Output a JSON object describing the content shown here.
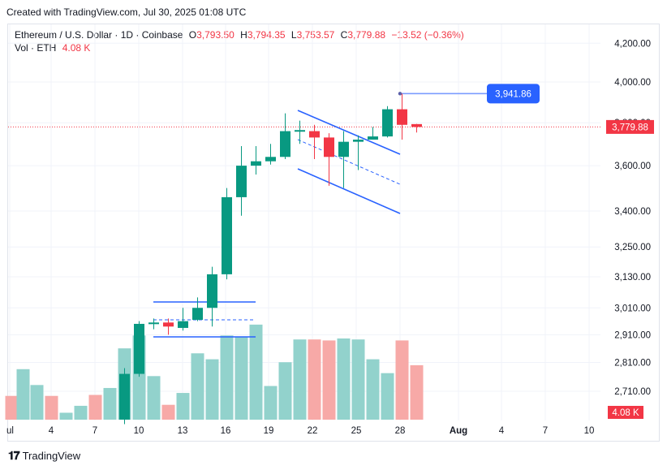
{
  "header": {
    "created_note": "Created with TradingView.com, Jul 30, 2025 01:08 UTC"
  },
  "legend": {
    "symbol": "Ethereum / U.S. Dollar · 1D · Coinbase",
    "o_label": "O",
    "o_value": "3,793.50",
    "h_label": "H",
    "h_value": "3,794.35",
    "l_label": "L",
    "l_value": "3,753.57",
    "c_label": "C",
    "c_value": "3,779.88",
    "change": "−13.52 (−0.36%)",
    "vol_label": "Vol · ETH",
    "vol_value": "4.08 K"
  },
  "price_axis": {
    "ticks": [
      "4,200.00",
      "4,000.00",
      "3,800.00",
      "3,600.00",
      "3,400.00",
      "3,250.00",
      "3,130.00",
      "3,010.00",
      "2,910.00",
      "2,810.00",
      "2,710.00"
    ],
    "last_price_tag": "3,779.88",
    "volume_tag": "4.08 K",
    "callout": "3,941.86"
  },
  "time_axis": {
    "ticks": [
      "ul",
      "4",
      "7",
      "10",
      "13",
      "16",
      "19",
      "22",
      "25",
      "28",
      "Aug",
      "4",
      "7",
      "10"
    ]
  },
  "colors": {
    "up": "#089981",
    "down": "#f23645",
    "up_vol": "#92d2cc",
    "down_vol": "#f7a9a7",
    "drawing": "#2962ff",
    "callout_bg": "#2962ff"
  },
  "chart_data": {
    "type": "candlestick",
    "title": "Ethereum / U.S. Dollar · 1D · Coinbase",
    "x": [
      "Jul 9",
      "Jul 10",
      "Jul 11",
      "Jul 12",
      "Jul 13",
      "Jul 14",
      "Jul 15",
      "Jul 16",
      "Jul 17",
      "Jul 18",
      "Jul 19",
      "Jul 20",
      "Jul 21",
      "Jul 22",
      "Jul 23",
      "Jul 24",
      "Jul 25",
      "Jul 26",
      "Jul 27",
      "Jul 28",
      "Jul 29"
    ],
    "candles": [
      {
        "o": 2615,
        "h": 2790,
        "l": 2600,
        "c": 2770
      },
      {
        "o": 2770,
        "h": 2960,
        "l": 2760,
        "c": 2950
      },
      {
        "o": 2950,
        "h": 2970,
        "l": 2930,
        "c": 2955
      },
      {
        "o": 2955,
        "h": 2970,
        "l": 2910,
        "c": 2940
      },
      {
        "o": 2935,
        "h": 3010,
        "l": 2925,
        "c": 2960
      },
      {
        "o": 2965,
        "h": 3050,
        "l": 2960,
        "c": 3010
      },
      {
        "o": 3010,
        "h": 3170,
        "l": 2940,
        "c": 3140
      },
      {
        "o": 3140,
        "h": 3500,
        "l": 3120,
        "c": 3460
      },
      {
        "o": 3460,
        "h": 3690,
        "l": 3380,
        "c": 3600
      },
      {
        "o": 3600,
        "h": 3690,
        "l": 3560,
        "c": 3620
      },
      {
        "o": 3620,
        "h": 3700,
        "l": 3605,
        "c": 3640
      },
      {
        "o": 3640,
        "h": 3845,
        "l": 3630,
        "c": 3760
      },
      {
        "o": 3760,
        "h": 3810,
        "l": 3700,
        "c": 3765
      },
      {
        "o": 3760,
        "h": 3790,
        "l": 3630,
        "c": 3730
      },
      {
        "o": 3730,
        "h": 3750,
        "l": 3510,
        "c": 3640
      },
      {
        "o": 3640,
        "h": 3760,
        "l": 3500,
        "c": 3710
      },
      {
        "o": 3710,
        "h": 3740,
        "l": 3580,
        "c": 3720
      },
      {
        "o": 3720,
        "h": 3780,
        "l": 3720,
        "c": 3735
      },
      {
        "o": 3735,
        "h": 3880,
        "l": 3730,
        "c": 3865
      },
      {
        "o": 3865,
        "h": 3941.86,
        "l": 3720,
        "c": 3790
      },
      {
        "o": 3793.5,
        "h": 3794.35,
        "l": 3753.57,
        "c": 3779.88
      }
    ],
    "volume_relative": [
      0.72,
      0.85,
      0.44,
      0.15,
      0.27,
      0.67,
      0.61,
      0.85,
      0.84,
      0.96,
      0.34,
      0.58,
      0.81,
      0.81,
      0.8,
      0.82,
      0.81,
      0.61,
      0.47,
      0.8,
      0.55
    ],
    "last_volume": "4.08 K",
    "yscale": "log",
    "ylim": [
      2650,
      4300
    ]
  },
  "footer": {
    "brand": "TradingView"
  }
}
